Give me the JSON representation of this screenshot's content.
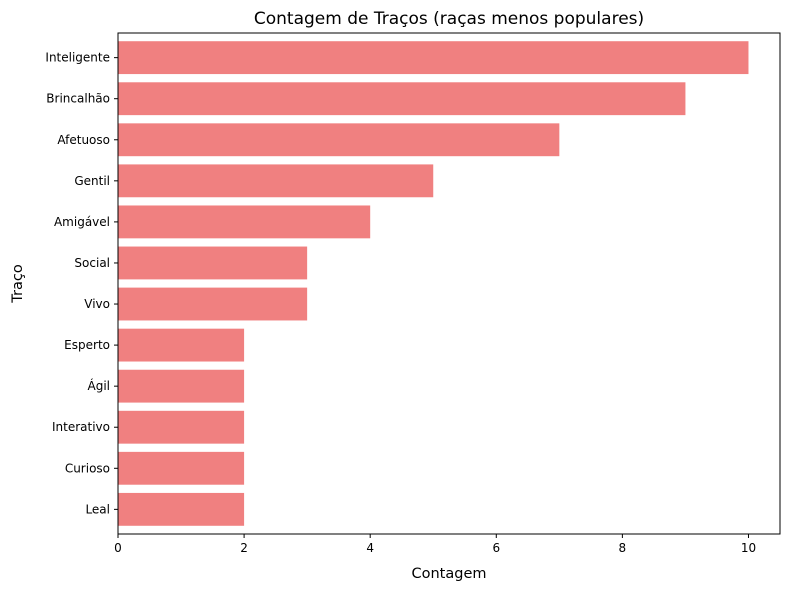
{
  "chart_data": {
    "type": "bar",
    "orientation": "horizontal",
    "title": "Contagem de Traços (raças menos populares)",
    "xlabel": "Contagem",
    "ylabel": "Traço",
    "categories": [
      "Inteligente",
      "Brincalhão",
      "Afetuoso",
      "Gentil",
      "Amigável",
      "Social",
      "Vivo",
      "Esperto",
      "Ágil",
      "Interativo",
      "Curioso",
      "Leal"
    ],
    "values": [
      10,
      9,
      7,
      5,
      4,
      3,
      3,
      2,
      2,
      2,
      2,
      2
    ],
    "xlim": [
      0,
      10.5
    ],
    "xticks": [
      0,
      2,
      4,
      6,
      8,
      10
    ],
    "bar_color": "#f08080",
    "grid": false
  }
}
